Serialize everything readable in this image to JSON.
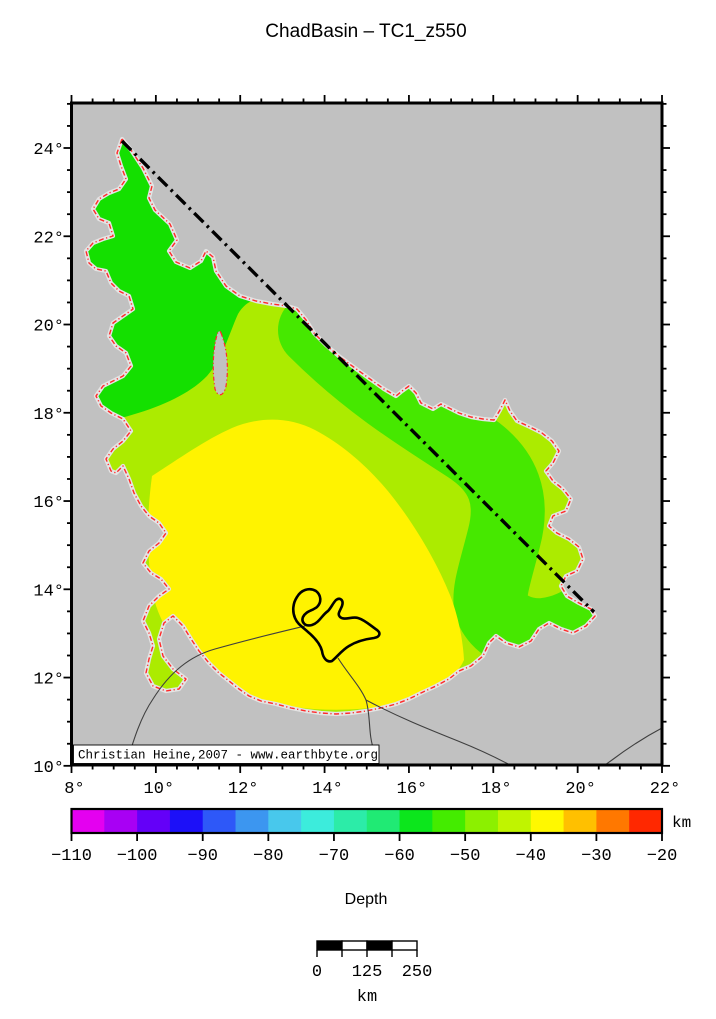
{
  "title": "ChadBasin – TC1_z550",
  "map": {
    "x_tick_labels": [
      "8°",
      "10°",
      "12°",
      "14°",
      "16°",
      "18°",
      "20°",
      "22°"
    ],
    "y_tick_labels": [
      "24°",
      "22°",
      "20°",
      "18°",
      "16°",
      "14°",
      "12°",
      "10°"
    ],
    "annotation": "Christian Heine,2007 - www.earthbyte.org",
    "colors": {
      "map_background": "#c1c1c1",
      "basin_outline": "#ff2a2a",
      "outline_halo": "#e4e4e4",
      "depth_band_green_north": "#14e000",
      "depth_band_green_mid": "#46e800",
      "depth_band_chartreuse": "#aceb00",
      "depth_band_yellow": "#fff300",
      "country_border": "#3f3f3f",
      "lake_outline": "#000000",
      "section_line": "#000000",
      "frame": "#000000"
    }
  },
  "colorbar": {
    "unit_label": "km",
    "axis_label": "Depth",
    "tick_labels": [
      "−110",
      "−100",
      "−90",
      "−80",
      "−70",
      "−60",
      "−50",
      "−40",
      "−30",
      "−20"
    ],
    "segment_colors": [
      "#e400f0",
      "#a800f4",
      "#6400f8",
      "#1c10f8",
      "#2e58f8",
      "#3c96f0",
      "#48c8ec",
      "#3cecdc",
      "#2ceca8",
      "#20ea74",
      "#0ce61c",
      "#44ec00",
      "#8cf000",
      "#c0f400",
      "#fff800",
      "#ffc000",
      "#ff7800",
      "#ff2800"
    ]
  },
  "scalebar": {
    "tick_labels": [
      "0",
      "125",
      "250"
    ],
    "unit_label": "km"
  }
}
